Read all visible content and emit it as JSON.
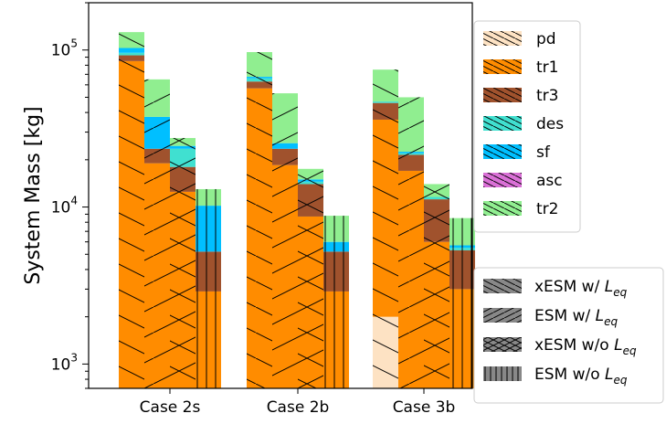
{
  "chart_data": {
    "type": "bar",
    "title": "",
    "xlabel": "",
    "ylabel": "System Mass [kg]",
    "yscale": "log",
    "ylim": [
      700,
      200000
    ],
    "ytick_labels": [
      {
        "base": "10",
        "exp": "3",
        "value": 1000
      },
      {
        "base": "10",
        "exp": "4",
        "value": 10000
      },
      {
        "base": "10",
        "exp": "5",
        "value": 100000
      }
    ],
    "categories": [
      "Case 2s",
      "Case 2b",
      "Case 3b"
    ],
    "stack_order": [
      "pd",
      "tr1",
      "tr3",
      "des",
      "sf",
      "asc",
      "tr2"
    ],
    "series": [
      {
        "name": "pd",
        "color": "#fde2c3"
      },
      {
        "name": "tr1",
        "color": "#ff8c00"
      },
      {
        "name": "tr3",
        "color": "#a0522d"
      },
      {
        "name": "des",
        "color": "#40e0d0"
      },
      {
        "name": "sf",
        "color": "#00bfff"
      },
      {
        "name": "asc",
        "color": "#da70d6"
      },
      {
        "name": "tr2",
        "color": "#90ee90"
      }
    ],
    "methods": [
      {
        "label_prefix": "xESM w/ ",
        "label_var": "L",
        "label_sub": "eq",
        "hatch": "backslash"
      },
      {
        "label_prefix": "ESM w/ ",
        "label_var": "L",
        "label_sub": "eq",
        "hatch": "slash"
      },
      {
        "label_prefix": "xESM w/o ",
        "label_var": "L",
        "label_sub": "eq",
        "hatch": "cross"
      },
      {
        "label_prefix": "ESM w/o ",
        "label_var": "L",
        "label_sub": "eq",
        "hatch": "vertical"
      }
    ],
    "data": {
      "Case 2s": [
        {
          "method": "xESM w/ Leq",
          "stack": {
            "pd": 0,
            "tr1": 85000,
            "tr3": 92500,
            "des": 96000,
            "sf": 103000,
            "asc": 103000,
            "tr2": 130000
          }
        },
        {
          "method": "ESM w/ Leq",
          "stack": {
            "pd": 0,
            "tr1": 19000,
            "tr3": 23500,
            "des": 23500,
            "sf": 37500,
            "asc": 37500,
            "tr2": 65000
          }
        },
        {
          "method": "xESM w/o Leq",
          "stack": {
            "pd": 0,
            "tr1": 12500,
            "tr3": 18000,
            "des": 23500,
            "sf": 24500,
            "asc": 24500,
            "tr2": 27500
          }
        },
        {
          "method": "ESM w/o Leq",
          "stack": {
            "pd": 0,
            "tr1": 2900,
            "tr3": 5200,
            "des": 5200,
            "sf": 10200,
            "asc": 10200,
            "tr2": 13000
          }
        }
      ],
      "Case 2b": [
        {
          "method": "xESM w/ Leq",
          "stack": {
            "pd": 0,
            "tr1": 57000,
            "tr3": 63000,
            "des": 66000,
            "sf": 67500,
            "asc": 67500,
            "tr2": 97000
          }
        },
        {
          "method": "ESM w/ Leq",
          "stack": {
            "pd": 0,
            "tr1": 18500,
            "tr3": 23500,
            "des": 23500,
            "sf": 25500,
            "asc": 25500,
            "tr2": 53000
          }
        },
        {
          "method": "xESM w/o Leq",
          "stack": {
            "pd": 0,
            "tr1": 8700,
            "tr3": 14000,
            "des": 14500,
            "sf": 15000,
            "asc": 15000,
            "tr2": 17500
          }
        },
        {
          "method": "ESM w/o Leq",
          "stack": {
            "pd": 0,
            "tr1": 2900,
            "tr3": 5200,
            "des": 5200,
            "sf": 6000,
            "asc": 6000,
            "tr2": 8800
          }
        }
      ],
      "Case 3b": [
        {
          "method": "xESM w/ Leq",
          "stack": {
            "pd": 2000,
            "tr1": 36000,
            "tr3": 46000,
            "des": 47000,
            "sf": 47000,
            "asc": 47000,
            "tr2": 75000
          }
        },
        {
          "method": "ESM w/ Leq",
          "stack": {
            "pd": 0,
            "tr1": 17000,
            "tr3": 21500,
            "des": 22000,
            "sf": 22500,
            "asc": 22500,
            "tr2": 50000
          }
        },
        {
          "method": "xESM w/o Leq",
          "stack": {
            "pd": 0,
            "tr1": 6000,
            "tr3": 11200,
            "des": 11600,
            "sf": 11600,
            "asc": 11600,
            "tr2": 14000
          }
        },
        {
          "method": "ESM w/o Leq",
          "stack": {
            "pd": 0,
            "tr1": 3000,
            "tr3": 5300,
            "des": 5500,
            "sf": 5700,
            "asc": 5700,
            "tr2": 8500
          }
        }
      ]
    },
    "grid": false,
    "legend_placement": "right, outside plot (two boxes: components top-right, methods bottom-right)"
  }
}
